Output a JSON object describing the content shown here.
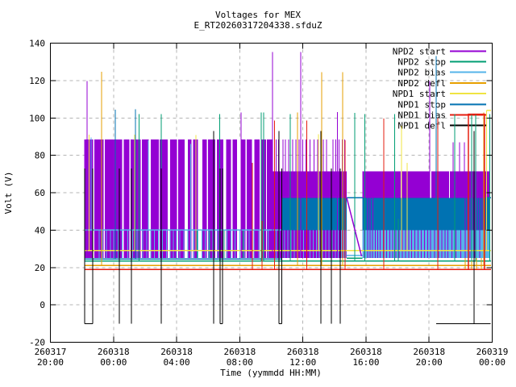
{
  "header": {
    "title_line1": "Voltages for MEX",
    "title_line2": "E_RT20260317204338.sfduZ"
  },
  "chart_data": {
    "type": "line",
    "title": "Voltages for MEX",
    "subtitle": "E_RT20260317204338.sfduZ",
    "xlabel": "Time (yymmdd HH:MM)",
    "ylabel": "Volt (V)",
    "ylim": [
      -20,
      140
    ],
    "yticks": [
      -20,
      0,
      20,
      40,
      60,
      80,
      100,
      120,
      140
    ],
    "x_hours_range": [
      0,
      28
    ],
    "xticks": [
      {
        "h": 0,
        "date": "260317",
        "time": "20:00"
      },
      {
        "h": 4,
        "date": "260318",
        "time": "00:00"
      },
      {
        "h": 8,
        "date": "260318",
        "time": "04:00"
      },
      {
        "h": 12,
        "date": "260318",
        "time": "08:00"
      },
      {
        "h": 16,
        "date": "260318",
        "time": "12:00"
      },
      {
        "h": 20,
        "date": "260318",
        "time": "16:00"
      },
      {
        "h": 24,
        "date": "260318",
        "time": "20:00"
      },
      {
        "h": 28,
        "date": "260319",
        "time": "00:00"
      }
    ],
    "grid": true,
    "grid_color": "#b4b4b4",
    "legend_position": "top-right-inside",
    "palette": {
      "p": "#9400D3",
      "t": "#009E73",
      "s": "#56B4E9",
      "o": "#E69F00",
      "y": "#F0E442",
      "b": "#0072B2",
      "r": "#E51E10",
      "k": "#000000"
    },
    "legend": [
      {
        "label": "NPD2 start",
        "c": "p"
      },
      {
        "label": "NPD2 stop",
        "c": "t"
      },
      {
        "label": "NPD2 bias",
        "c": "s"
      },
      {
        "label": "NPD2 defl",
        "c": "o"
      },
      {
        "label": "NPD1 start",
        "c": "y"
      },
      {
        "label": "NPD1 stop",
        "c": "b"
      },
      {
        "label": "NPD1 bias",
        "c": "r"
      },
      {
        "label": "NPD1 defl",
        "c": "k"
      }
    ],
    "bands": [
      {
        "c": "p",
        "t0": 2.15,
        "t1": 14.08,
        "v0": 25,
        "v1": 88.4
      },
      {
        "c": "p",
        "t0": 14.08,
        "t1": 18.78,
        "v0": 25,
        "v1": 71.5
      },
      {
        "c": "b",
        "t0": 14.63,
        "t1": 18.78,
        "v0": 40,
        "v1": 57.3
      },
      {
        "c": "p",
        "t0": 19.78,
        "t1": 27.85,
        "v0": 57.3,
        "v1": 71.5
      },
      {
        "c": "b",
        "t0": 19.78,
        "t1": 27.85,
        "v0": 40,
        "v1": 57.3
      },
      {
        "c": "s",
        "t0": 19.78,
        "t1": 27.85,
        "v0": 25,
        "v1": 40
      }
    ],
    "white_slits": [
      {
        "t": 2.75,
        "w": 0.08,
        "v0": 25,
        "v1": 88.4
      },
      {
        "t": 3.4,
        "w": 0.08,
        "v0": 25,
        "v1": 88.4
      },
      {
        "t": 4.6,
        "w": 0.1,
        "v0": 25,
        "v1": 88.4
      },
      {
        "t": 5.05,
        "w": 0.06,
        "v0": 25,
        "v1": 88.4
      },
      {
        "t": 5.75,
        "w": 0.08,
        "v0": 25,
        "v1": 88.4
      },
      {
        "t": 6.3,
        "w": 0.12,
        "v0": 25,
        "v1": 88.4
      },
      {
        "t": 6.9,
        "w": 0.06,
        "v0": 25,
        "v1": 88.4
      },
      {
        "t": 7.5,
        "w": 0.15,
        "v0": 25,
        "v1": 88.4
      },
      {
        "t": 8.05,
        "w": 0.08,
        "v0": 25,
        "v1": 88.4
      },
      {
        "t": 8.6,
        "w": 0.2,
        "v0": 25,
        "v1": 88.4
      },
      {
        "t": 9.0,
        "w": 0.1,
        "v0": 25,
        "v1": 88.4
      },
      {
        "t": 9.5,
        "w": 0.28,
        "v0": 25,
        "v1": 88.4
      },
      {
        "t": 9.95,
        "w": 0.08,
        "v0": 25,
        "v1": 88.4
      },
      {
        "t": 10.5,
        "w": 0.12,
        "v0": 25,
        "v1": 88.4
      },
      {
        "t": 11.05,
        "w": 0.18,
        "v0": 25,
        "v1": 88.4
      },
      {
        "t": 11.5,
        "w": 0.1,
        "v0": 25,
        "v1": 88.4
      },
      {
        "t": 11.95,
        "w": 0.22,
        "v0": 25,
        "v1": 88.4
      },
      {
        "t": 12.4,
        "w": 0.08,
        "v0": 25,
        "v1": 88.4
      },
      {
        "t": 12.85,
        "w": 0.15,
        "v0": 25,
        "v1": 88.4
      },
      {
        "t": 13.3,
        "w": 0.08,
        "v0": 25,
        "v1": 88.4
      },
      {
        "t": 13.7,
        "w": 0.06,
        "v0": 25,
        "v1": 88.4
      },
      {
        "t": 22.25,
        "w": 0.08,
        "v0": 57.3,
        "v1": 71.5
      },
      {
        "t": 24.1,
        "w": 0.1,
        "v0": 57.3,
        "v1": 71.5
      },
      {
        "t": 25.3,
        "w": 0.06,
        "v0": 57.3,
        "v1": 71.5
      }
    ],
    "stripes": [
      {
        "c": "s",
        "v0": 25,
        "v1": 40,
        "ts": [
          3.1,
          3.3,
          3.55,
          3.8,
          4.0,
          4.3,
          4.55,
          4.9,
          5.2,
          5.5,
          5.85,
          6.1,
          6.35,
          6.6,
          6.85,
          7.1,
          7.35,
          7.6,
          7.8,
          8.0,
          8.2,
          8.45,
          8.7,
          8.9,
          9.1,
          9.35,
          9.6,
          9.8,
          10.05,
          10.3,
          10.6,
          10.9,
          11.2,
          11.45,
          11.7,
          12.0,
          12.3,
          12.6,
          12.9,
          13.2,
          13.5,
          13.8
        ]
      },
      {
        "c": "s",
        "v0": 25,
        "v1": 40,
        "ts": [
          14.3,
          14.5,
          14.7,
          14.85,
          15.05,
          15.25,
          15.45,
          15.65,
          15.85,
          16.05,
          16.25,
          16.45,
          16.65,
          16.85,
          17.05,
          17.25,
          17.45,
          17.65,
          17.85,
          18.05,
          18.25,
          18.45,
          18.6,
          18.72
        ]
      },
      {
        "c": "t",
        "v0": 25,
        "v1": 40,
        "ts": [
          9.3,
          10.1,
          11.0,
          12.2
        ]
      },
      {
        "c": "p",
        "v0": 25,
        "v1": 40,
        "ts": [
          19.9,
          20.1,
          20.25,
          20.4,
          20.6,
          20.75,
          20.9,
          21.1,
          21.3,
          21.5,
          21.7,
          21.9,
          22.1,
          22.3,
          22.5,
          22.7,
          22.9,
          23.1,
          23.3,
          23.5,
          23.7,
          23.9,
          24.1,
          24.35,
          24.6,
          24.8,
          25.0,
          25.2,
          25.45,
          25.7,
          26.0,
          26.3,
          26.6,
          26.9,
          27.2,
          27.5
        ]
      },
      {
        "c": "p",
        "v0": 40,
        "v1": 57.3,
        "ts": [
          20.1,
          20.25,
          20.45,
          26.3,
          26.45,
          26.6,
          26.75,
          26.9,
          27.05,
          27.2,
          27.35,
          27.5,
          27.65
        ]
      },
      {
        "c": "p",
        "v0": 71.5,
        "v1": 88.4,
        "ts": [
          14.3,
          14.45,
          14.75,
          14.9,
          15.1,
          15.35,
          15.55,
          15.75,
          16.0,
          16.2,
          16.45,
          16.7,
          16.95,
          17.3,
          17.5,
          17.9,
          18.1,
          18.3,
          18.5,
          18.65
        ]
      }
    ],
    "baselines": [
      {
        "c": "y",
        "v": 29,
        "t0": 2.15,
        "t1": 27.92
      },
      {
        "c": "b",
        "v": 24.6,
        "t0": 2.15,
        "t1": 14.63
      },
      {
        "c": "t",
        "v": 23.5,
        "t0": 2.15,
        "t1": 27.92
      },
      {
        "c": "o",
        "v": 21,
        "t0": 2.15,
        "t1": 27.92
      },
      {
        "c": "r",
        "v": 19,
        "t0": 2.15,
        "t1": 27.92
      },
      {
        "c": "s",
        "v": 40,
        "t0": 2.15,
        "t1": 14.63
      },
      {
        "c": "b",
        "v": 57.3,
        "t0": 18.78,
        "t1": 19.78
      },
      {
        "c": "t",
        "v": 25,
        "t0": 18.78,
        "t1": 19.78
      },
      {
        "c": "s",
        "v": 26.5,
        "t0": 18.78,
        "t1": 19.78
      },
      {
        "c": "b",
        "v": 57.3,
        "t0": 27.6,
        "t1": 27.92
      }
    ],
    "spikes": [
      {
        "c": "p",
        "vb": 25,
        "pts": [
          [
            2.32,
            119.8
          ],
          [
            12.08,
            103
          ],
          [
            14.08,
            135.3
          ],
          [
            15.86,
            135.3
          ],
          [
            18.2,
            103.2
          ]
        ]
      },
      {
        "c": "p",
        "vb": 57.3,
        "pts": [
          [
            24.04,
            119.8
          ],
          [
            25.52,
            87
          ],
          [
            25.93,
            87
          ],
          [
            26.24,
            87
          ]
        ]
      },
      {
        "c": "o",
        "vb": 21,
        "pts": [
          [
            3.24,
            124.6
          ],
          [
            15.66,
            103
          ],
          [
            17.2,
            124.4
          ],
          [
            18.52,
            124.4
          ],
          [
            27.46,
            103
          ]
        ]
      },
      {
        "c": "o",
        "vb": 19,
        "pts": [
          [
            26.3,
            25
          ],
          [
            26.7,
            25
          ],
          [
            27.0,
            25
          ],
          [
            27.3,
            25
          ]
        ]
      },
      {
        "c": "b",
        "vb": 24.6,
        "pts": [
          [
            4.11,
            104.5
          ],
          [
            5.39,
            104.6
          ]
        ]
      },
      {
        "c": "b",
        "vb": 40,
        "pts": [
          [
            24.45,
            133
          ]
        ]
      },
      {
        "c": "t",
        "vb": 23.5,
        "pts": [
          [
            5.62,
            102
          ],
          [
            7.03,
            102
          ],
          [
            10.74,
            102
          ],
          [
            13.36,
            103
          ],
          [
            13.51,
            103
          ],
          [
            15.2,
            102
          ],
          [
            19.3,
            102.7
          ],
          [
            19.93,
            102
          ],
          [
            21.83,
            102
          ],
          [
            22.04,
            46
          ],
          [
            25.63,
            102
          ],
          [
            26.49,
            102
          ],
          [
            26.69,
            102
          ],
          [
            26.95,
            102
          ],
          [
            27.85,
            102
          ]
        ]
      },
      {
        "c": "r",
        "vb": 19,
        "pts": [
          [
            12.8,
            76
          ],
          [
            13.4,
            45
          ],
          [
            14.2,
            98.6
          ],
          [
            16.25,
            98.6
          ],
          [
            18.67,
            88
          ],
          [
            21.14,
            99.6
          ],
          [
            24.55,
            100
          ]
        ]
      },
      {
        "c": "y",
        "vb": 29,
        "pts": [
          [
            2.45,
            91
          ],
          [
            5.34,
            91
          ],
          [
            9.22,
            90.8
          ],
          [
            17.0,
            91.3
          ],
          [
            22.25,
            95.9
          ],
          [
            22.6,
            76
          ],
          [
            27.64,
            104
          ]
        ]
      },
      {
        "c": "s",
        "vb": 40,
        "pts": [
          [
            2.58,
            89.6
          ],
          [
            6.2,
            88
          ],
          [
            8.9,
            86
          ]
        ]
      }
    ],
    "polylines": [
      {
        "c": "p",
        "pts": [
          [
            18.78,
            57.3
          ],
          [
            19.72,
            26
          ]
        ]
      },
      {
        "c": "r",
        "pts": [
          [
            26.49,
            19
          ],
          [
            26.49,
            102
          ],
          [
            27.51,
            102
          ],
          [
            27.51,
            19
          ]
        ]
      },
      {
        "c": "y",
        "pts": [
          [
            27.64,
            104
          ],
          [
            27.92,
            104
          ]
        ]
      }
    ],
    "black_impulses": {
      "bottom": -10.1,
      "lines": [
        [
          2.17,
          73
        ],
        [
          2.68,
          73
        ],
        [
          4.37,
          73
        ],
        [
          5.13,
          73
        ],
        [
          7.03,
          73
        ],
        [
          10.35,
          93
        ],
        [
          10.76,
          73
        ],
        [
          10.92,
          73
        ],
        [
          14.48,
          93
        ],
        [
          14.66,
          73
        ],
        [
          17.14,
          93
        ],
        [
          17.8,
          73
        ],
        [
          18.36,
          73
        ],
        [
          26.84,
          93
        ]
      ],
      "feet": [
        [
          2.17,
          2.68
        ],
        [
          10.76,
          10.92
        ],
        [
          14.48,
          14.66
        ]
      ],
      "floor": {
        "t0": 24.45,
        "t1": 27.9,
        "v": -10.1
      }
    }
  }
}
